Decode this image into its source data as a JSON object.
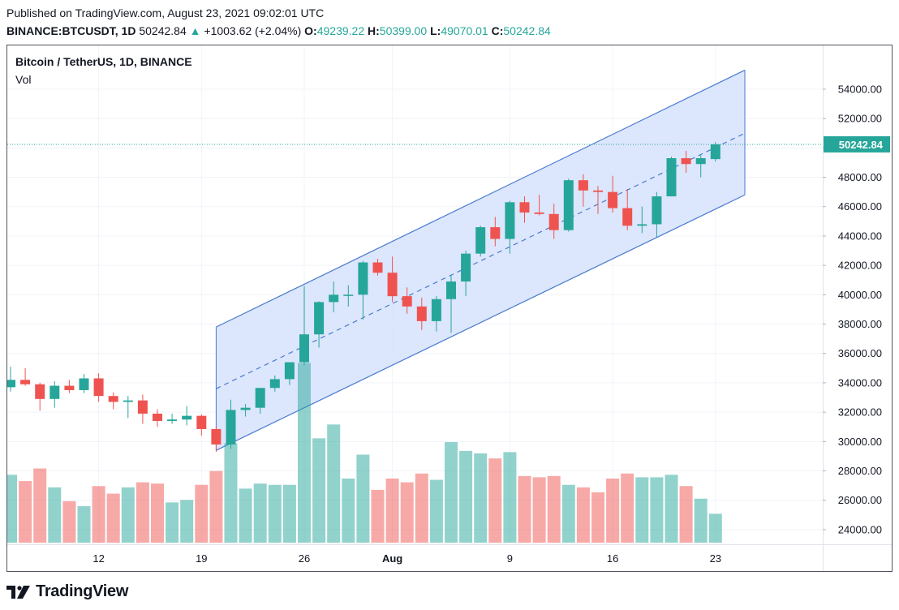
{
  "header": {
    "published": "Published on TradingView.com, August 23, 2021 09:02:01 UTC",
    "symbol": "BINANCE:BTCUSDT, 1D",
    "last": "50242.84",
    "change": "+1003.62 (+2.04%)",
    "open_label": "O:",
    "open": "49239.22",
    "high_label": "H:",
    "high": "50399.00",
    "low_label": "L:",
    "low": "49070.01",
    "close_label": "C:",
    "close": "50242.84"
  },
  "legend": {
    "title": "Bitcoin / TetherUS, 1D, BINANCE",
    "volume": "Vol"
  },
  "brand": {
    "name": "TradingView",
    "logo_icon": "tradingview-logo-icon"
  },
  "colors": {
    "up": "#26a69a",
    "down": "#ef5350",
    "channel_fill": "#d6e2fc",
    "channel_line": "#4a7bd0",
    "grid": "#f0f3fa",
    "axis_text": "#131722"
  },
  "chart_data": {
    "type": "candlestick",
    "title": "Bitcoin / TetherUS, 1D, BINANCE",
    "ylim": [
      23000,
      55600
    ],
    "y_ticks": [
      "24000.00",
      "26000.00",
      "28000.00",
      "30000.00",
      "32000.00",
      "34000.00",
      "36000.00",
      "38000.00",
      "40000.00",
      "42000.00",
      "44000.00",
      "46000.00",
      "48000.00",
      "50000.00",
      "52000.00",
      "54000.00"
    ],
    "x_ticks": [
      {
        "label": "12",
        "index": 6
      },
      {
        "label": "19",
        "index": 13
      },
      {
        "label": "26",
        "index": 20
      },
      {
        "label": "Aug",
        "index": 26
      },
      {
        "label": "9",
        "index": 34
      },
      {
        "label": "16",
        "index": 41
      },
      {
        "label": "23",
        "index": 48
      }
    ],
    "last_price_label": "50242.84",
    "last_price": 50242.84,
    "candles": [
      {
        "date": "2021-07-06",
        "o": 33700,
        "h": 35100,
        "l": 33400,
        "c": 34200,
        "vol": 0.54
      },
      {
        "date": "2021-07-07",
        "o": 34200,
        "h": 35000,
        "l": 33800,
        "c": 33900,
        "vol": 0.49
      },
      {
        "date": "2021-07-08",
        "o": 33900,
        "h": 34000,
        "l": 32100,
        "c": 32900,
        "vol": 0.59
      },
      {
        "date": "2021-07-09",
        "o": 32900,
        "h": 34100,
        "l": 32300,
        "c": 33800,
        "vol": 0.44
      },
      {
        "date": "2021-07-10",
        "o": 33800,
        "h": 34200,
        "l": 33300,
        "c": 33500,
        "vol": 0.33
      },
      {
        "date": "2021-07-11",
        "o": 33500,
        "h": 34600,
        "l": 33300,
        "c": 34300,
        "vol": 0.29
      },
      {
        "date": "2021-07-12",
        "o": 34300,
        "h": 34650,
        "l": 32700,
        "c": 33100,
        "vol": 0.45
      },
      {
        "date": "2021-07-13",
        "o": 33100,
        "h": 33350,
        "l": 32200,
        "c": 32700,
        "vol": 0.39
      },
      {
        "date": "2021-07-14",
        "o": 32700,
        "h": 33100,
        "l": 31600,
        "c": 32800,
        "vol": 0.44
      },
      {
        "date": "2021-07-15",
        "o": 32800,
        "h": 33200,
        "l": 31200,
        "c": 31900,
        "vol": 0.48
      },
      {
        "date": "2021-07-16",
        "o": 31900,
        "h": 32200,
        "l": 31000,
        "c": 31400,
        "vol": 0.47
      },
      {
        "date": "2021-07-17",
        "o": 31400,
        "h": 31900,
        "l": 31200,
        "c": 31500,
        "vol": 0.32
      },
      {
        "date": "2021-07-18",
        "o": 31500,
        "h": 32400,
        "l": 31100,
        "c": 31750,
        "vol": 0.34
      },
      {
        "date": "2021-07-19",
        "o": 31750,
        "h": 31850,
        "l": 30400,
        "c": 30850,
        "vol": 0.46
      },
      {
        "date": "2021-07-20",
        "o": 30850,
        "h": 31000,
        "l": 29300,
        "c": 29800,
        "vol": 0.57
      },
      {
        "date": "2021-07-21",
        "o": 29800,
        "h": 32850,
        "l": 29500,
        "c": 32150,
        "vol": 0.79
      },
      {
        "date": "2021-07-22",
        "o": 32150,
        "h": 32550,
        "l": 31700,
        "c": 32300,
        "vol": 0.43
      },
      {
        "date": "2021-07-23",
        "o": 32300,
        "h": 33650,
        "l": 31900,
        "c": 33650,
        "vol": 0.47
      },
      {
        "date": "2021-07-24",
        "o": 33650,
        "h": 34500,
        "l": 33400,
        "c": 34250,
        "vol": 0.46
      },
      {
        "date": "2021-07-25",
        "o": 34250,
        "h": 35400,
        "l": 33850,
        "c": 35400,
        "vol": 0.46
      },
      {
        "date": "2021-07-26",
        "o": 35400,
        "h": 40600,
        "l": 35200,
        "c": 37300,
        "vol": 1.43
      },
      {
        "date": "2021-07-27",
        "o": 37300,
        "h": 39550,
        "l": 36400,
        "c": 39500,
        "vol": 0.83
      },
      {
        "date": "2021-07-28",
        "o": 39500,
        "h": 40900,
        "l": 38800,
        "c": 40000,
        "vol": 0.94
      },
      {
        "date": "2021-07-29",
        "o": 40000,
        "h": 40650,
        "l": 39200,
        "c": 40000,
        "vol": 0.51
      },
      {
        "date": "2021-07-30",
        "o": 40000,
        "h": 42300,
        "l": 38300,
        "c": 42200,
        "vol": 0.7
      },
      {
        "date": "2021-07-31",
        "o": 42200,
        "h": 42450,
        "l": 41300,
        "c": 41500,
        "vol": 0.42
      },
      {
        "date": "2021-08-01",
        "o": 41500,
        "h": 42600,
        "l": 39500,
        "c": 39900,
        "vol": 0.51
      },
      {
        "date": "2021-08-02",
        "o": 39900,
        "h": 40500,
        "l": 38700,
        "c": 39200,
        "vol": 0.48
      },
      {
        "date": "2021-08-03",
        "o": 39200,
        "h": 39800,
        "l": 37600,
        "c": 38200,
        "vol": 0.55
      },
      {
        "date": "2021-08-04",
        "o": 38200,
        "h": 39900,
        "l": 37500,
        "c": 39700,
        "vol": 0.5
      },
      {
        "date": "2021-08-05",
        "o": 39700,
        "h": 41300,
        "l": 37400,
        "c": 40900,
        "vol": 0.8
      },
      {
        "date": "2021-08-06",
        "o": 40900,
        "h": 43000,
        "l": 39900,
        "c": 42800,
        "vol": 0.73
      },
      {
        "date": "2021-08-07",
        "o": 42800,
        "h": 44700,
        "l": 42600,
        "c": 44600,
        "vol": 0.71
      },
      {
        "date": "2021-08-08",
        "o": 44600,
        "h": 45300,
        "l": 43300,
        "c": 43800,
        "vol": 0.67
      },
      {
        "date": "2021-08-09",
        "o": 43800,
        "h": 46400,
        "l": 42800,
        "c": 46300,
        "vol": 0.72
      },
      {
        "date": "2021-08-10",
        "o": 46300,
        "h": 46700,
        "l": 44900,
        "c": 45600,
        "vol": 0.53
      },
      {
        "date": "2021-08-11",
        "o": 45600,
        "h": 46800,
        "l": 45400,
        "c": 45500,
        "vol": 0.52
      },
      {
        "date": "2021-08-12",
        "o": 45500,
        "h": 46200,
        "l": 43800,
        "c": 44400,
        "vol": 0.53
      },
      {
        "date": "2021-08-13",
        "o": 44400,
        "h": 47900,
        "l": 44300,
        "c": 47800,
        "vol": 0.46
      },
      {
        "date": "2021-08-14",
        "o": 47800,
        "h": 48200,
        "l": 46000,
        "c": 47100,
        "vol": 0.44
      },
      {
        "date": "2021-08-15",
        "o": 47100,
        "h": 47400,
        "l": 45500,
        "c": 47000,
        "vol": 0.4
      },
      {
        "date": "2021-08-16",
        "o": 47000,
        "h": 48100,
        "l": 45600,
        "c": 45900,
        "vol": 0.51
      },
      {
        "date": "2021-08-17",
        "o": 45900,
        "h": 47200,
        "l": 44400,
        "c": 44700,
        "vol": 0.55
      },
      {
        "date": "2021-08-18",
        "o": 44700,
        "h": 46000,
        "l": 44200,
        "c": 44800,
        "vol": 0.52
      },
      {
        "date": "2021-08-19",
        "o": 44800,
        "h": 47000,
        "l": 43900,
        "c": 46700,
        "vol": 0.52
      },
      {
        "date": "2021-08-20",
        "o": 46700,
        "h": 49400,
        "l": 46700,
        "c": 49300,
        "vol": 0.54
      },
      {
        "date": "2021-08-21",
        "o": 49300,
        "h": 49800,
        "l": 48300,
        "c": 48900,
        "vol": 0.45
      },
      {
        "date": "2021-08-22",
        "o": 48900,
        "h": 49500,
        "l": 48000,
        "c": 49300,
        "vol": 0.35
      },
      {
        "date": "2021-08-23",
        "o": 49239.22,
        "h": 50399.0,
        "l": 49070.01,
        "c": 50242.84,
        "vol": 0.23
      }
    ],
    "channel": {
      "start_index": 14,
      "end_index": 50,
      "upper": [
        37800,
        55300
      ],
      "mid": [
        33600,
        51000
      ],
      "lower": [
        29400,
        46800
      ]
    }
  }
}
